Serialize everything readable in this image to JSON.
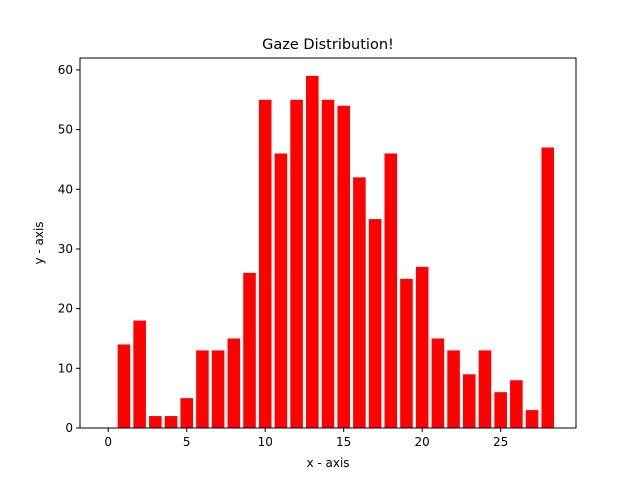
{
  "chart_data": {
    "type": "bar",
    "title": "Gaze Distribution!",
    "xlabel": "x - axis",
    "ylabel": "y - axis",
    "x": [
      1,
      2,
      3,
      4,
      5,
      6,
      7,
      8,
      9,
      10,
      11,
      12,
      13,
      14,
      15,
      16,
      17,
      18,
      19,
      20,
      21,
      22,
      23,
      24,
      25,
      26,
      27,
      28
    ],
    "values": [
      14,
      18,
      2,
      2,
      5,
      13,
      13,
      15,
      26,
      55,
      46,
      55,
      59,
      55,
      54,
      42,
      35,
      46,
      25,
      27,
      15,
      13,
      9,
      13,
      6,
      8,
      3,
      47
    ],
    "xlim": [
      -1.8,
      29.8
    ],
    "ylim": [
      0,
      62
    ],
    "xticks": [
      0,
      5,
      10,
      15,
      20,
      25
    ],
    "yticks": [
      0,
      10,
      20,
      30,
      40,
      50,
      60
    ],
    "bar_color": "#ff0000",
    "grid": false
  }
}
